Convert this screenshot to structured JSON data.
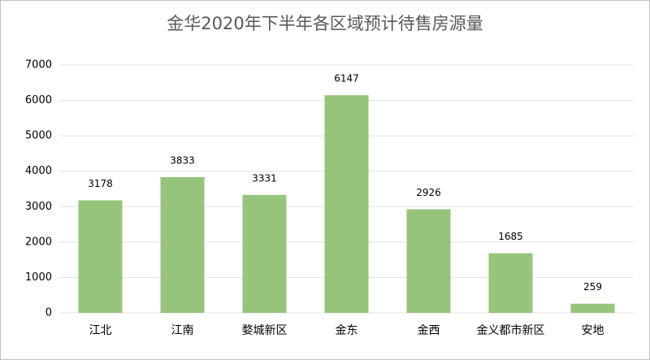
{
  "chart_data": {
    "type": "bar",
    "title": "金华2020年下半年各区域预计待售房源量",
    "categories": [
      "江北",
      "江南",
      "婺城新区",
      "金东",
      "金西",
      "金义都市新区",
      "安地"
    ],
    "values": [
      3178,
      3833,
      3331,
      6147,
      2926,
      1685,
      259
    ],
    "color": "#97c47b",
    "ylim": [
      0,
      7000
    ],
    "yticks": [
      0,
      1000,
      2000,
      3000,
      4000,
      5000,
      6000,
      7000
    ],
    "grid": true
  }
}
